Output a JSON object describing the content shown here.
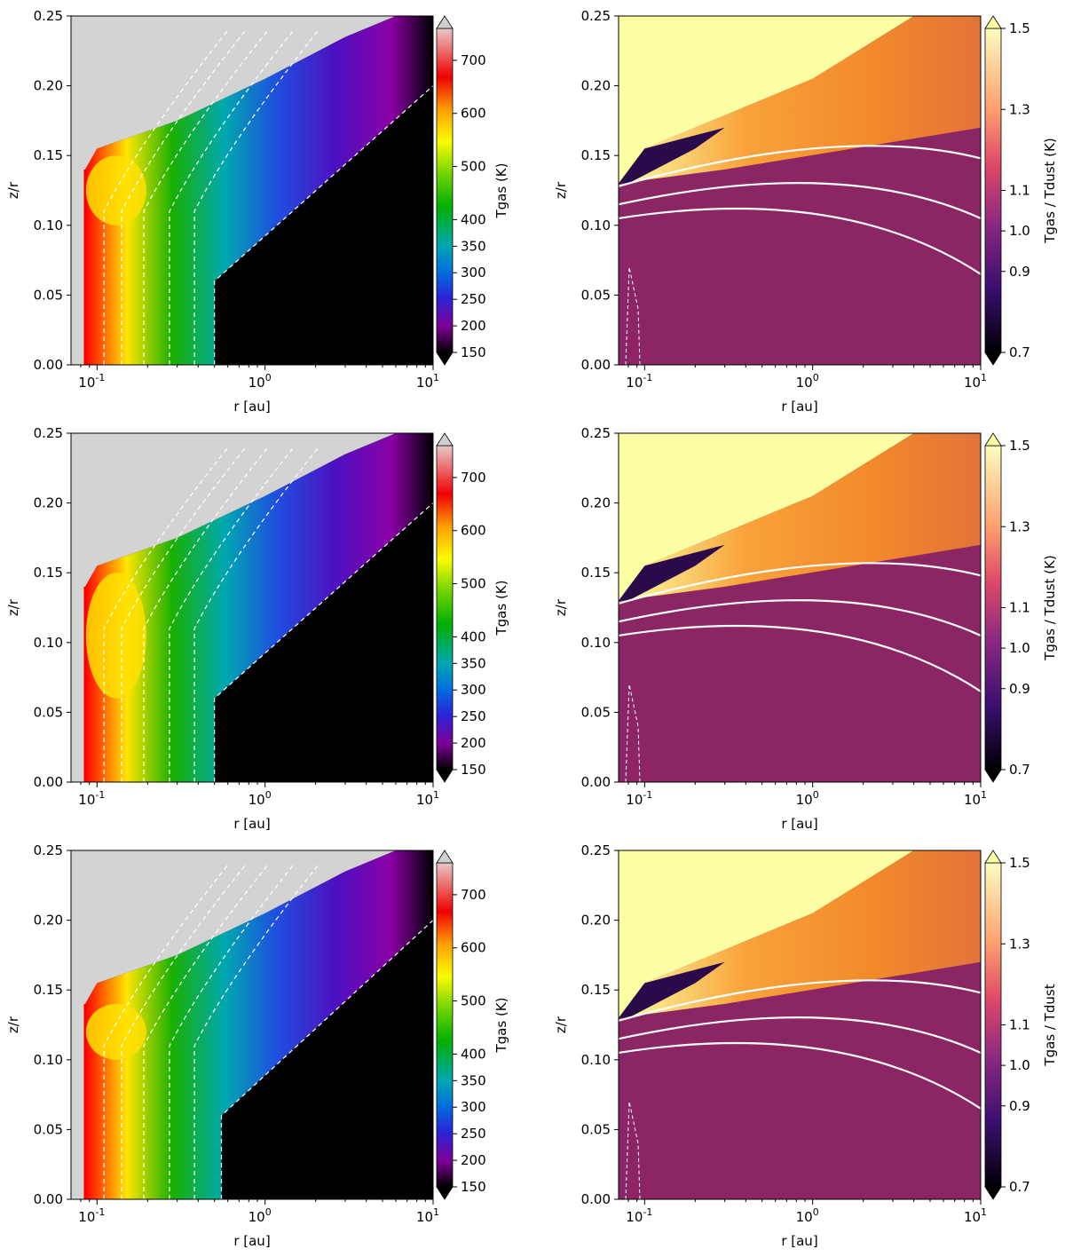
{
  "chart_data": [
    {
      "type": "heatmap",
      "panel": "row1-left",
      "xlabel": "r [au]",
      "ylabel": "z/r",
      "xscale": "log",
      "xlim": [
        0.07,
        10
      ],
      "ylim": [
        0,
        0.25
      ],
      "xticks": [
        "10^-1",
        "10^0",
        "10^1"
      ],
      "yticks": [
        "0.00",
        "0.05",
        "0.10",
        "0.15",
        "0.20",
        "0.25"
      ],
      "colorbar": {
        "label": "Tgas (K)",
        "ticks": [
          "150",
          "200",
          "250",
          "300",
          "350",
          "400",
          "500",
          "600",
          "700"
        ],
        "range": [
          150,
          760
        ],
        "extend": "both"
      },
      "features": {
        "inner_rim_r": 0.085,
        "hot_region_z": [
          0.1,
          0.15
        ],
        "cold_transition_r": 0.5
      }
    },
    {
      "type": "heatmap",
      "panel": "row1-right",
      "xlabel": "r [au]",
      "ylabel": "z/r",
      "xscale": "log",
      "xlim": [
        0.07,
        10
      ],
      "ylim": [
        0,
        0.25
      ],
      "xticks": [
        "10^-1",
        "10^0",
        "10^1"
      ],
      "yticks": [
        "0.00",
        "0.05",
        "0.10",
        "0.15",
        "0.20",
        "0.25"
      ],
      "colorbar": {
        "label": "Tgas / Tdust (K)",
        "ticks": [
          "0.7",
          "0.9",
          "1.0",
          "1.1",
          "1.3",
          "1.5"
        ],
        "range": [
          0.7,
          1.5
        ],
        "extend": "both"
      },
      "features": {
        "background_ratio": 1.0,
        "upper_layer_ratio": 1.5
      }
    },
    {
      "type": "heatmap",
      "panel": "row2-left",
      "xlabel": "r [au]",
      "ylabel": "z/r",
      "xscale": "log",
      "xlim": [
        0.07,
        10
      ],
      "ylim": [
        0,
        0.25
      ],
      "xticks": [
        "10^-1",
        "10^0",
        "10^1"
      ],
      "yticks": [
        "0.00",
        "0.05",
        "0.10",
        "0.15",
        "0.20",
        "0.25"
      ],
      "colorbar": {
        "label": "Tgas (K)",
        "ticks": [
          "150",
          "200",
          "250",
          "300",
          "350",
          "400",
          "500",
          "600",
          "700"
        ],
        "range": [
          150,
          760
        ],
        "extend": "both"
      },
      "features": {
        "inner_rim_r": 0.085,
        "hot_region_z": [
          0.06,
          0.15
        ],
        "cold_transition_r": 0.5
      }
    },
    {
      "type": "heatmap",
      "panel": "row2-right",
      "xlabel": "r [au]",
      "ylabel": "z/r",
      "xscale": "log",
      "xlim": [
        0.07,
        10
      ],
      "ylim": [
        0,
        0.25
      ],
      "xticks": [
        "10^-1",
        "10^0",
        "10^1"
      ],
      "yticks": [
        "0.00",
        "0.05",
        "0.10",
        "0.15",
        "0.20",
        "0.25"
      ],
      "colorbar": {
        "label": "Tgas / Tdust (K)",
        "ticks": [
          "0.7",
          "0.9",
          "1.0",
          "1.1",
          "1.3",
          "1.5"
        ],
        "range": [
          0.7,
          1.5
        ],
        "extend": "both"
      },
      "features": {
        "background_ratio": 1.0,
        "upper_layer_ratio": 1.5
      }
    },
    {
      "type": "heatmap",
      "panel": "row3-left",
      "xlabel": "r [au]",
      "ylabel": "z/r",
      "xscale": "log",
      "xlim": [
        0.07,
        10
      ],
      "ylim": [
        0,
        0.25
      ],
      "xticks": [
        "10^-1",
        "10^0",
        "10^1"
      ],
      "yticks": [
        "0.00",
        "0.05",
        "0.10",
        "0.15",
        "0.20",
        "0.25"
      ],
      "colorbar": {
        "label": "Tgas (K)",
        "ticks": [
          "150",
          "200",
          "250",
          "300",
          "350",
          "400",
          "500",
          "600",
          "700"
        ],
        "range": [
          150,
          760
        ],
        "extend": "both"
      },
      "features": {
        "inner_rim_r": 0.085,
        "hot_region_z": [
          0.1,
          0.14
        ],
        "cold_transition_r": 0.55
      }
    },
    {
      "type": "heatmap",
      "panel": "row3-right",
      "xlabel": "r [au]",
      "ylabel": "z/r",
      "xscale": "log",
      "xlim": [
        0.07,
        10
      ],
      "ylim": [
        0,
        0.25
      ],
      "xticks": [
        "10^-1",
        "10^0",
        "10^1"
      ],
      "yticks": [
        "0.00",
        "0.05",
        "0.10",
        "0.15",
        "0.20",
        "0.25"
      ],
      "colorbar": {
        "label": "Tgas / Tdust",
        "ticks": [
          "0.7",
          "0.9",
          "1.0",
          "1.1",
          "1.3",
          "1.5"
        ],
        "range": [
          0.7,
          1.5
        ],
        "extend": "both"
      },
      "features": {
        "background_ratio": 1.0,
        "upper_layer_ratio": 1.5
      }
    }
  ],
  "colors": {
    "masked": "#d3d3d3",
    "cold": "#000000",
    "ratio_background": "#8c2563",
    "ratio_high": "#fcfea4",
    "contour": "#ffffff"
  }
}
